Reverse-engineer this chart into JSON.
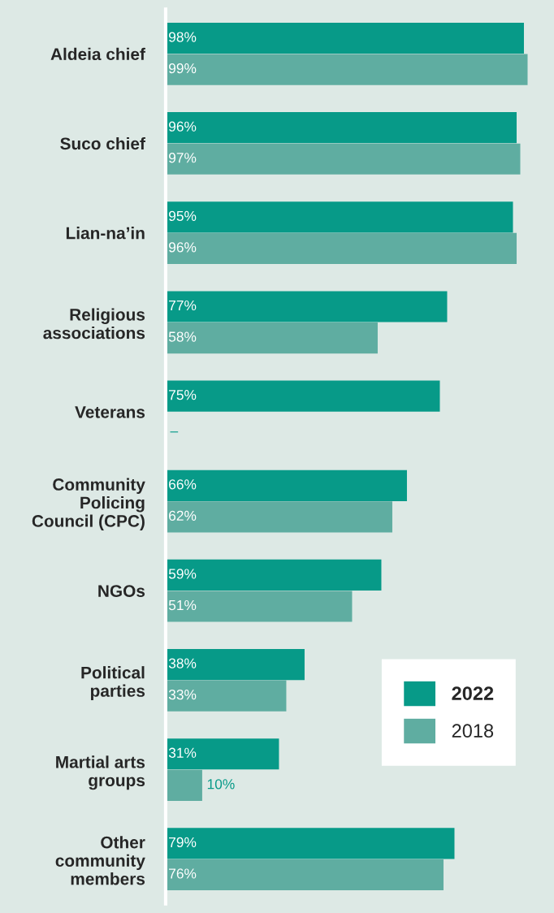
{
  "chart_data": {
    "type": "bar",
    "orientation": "horizontal",
    "categories": [
      "Aldeia chief",
      "Suco chief",
      "Lian-na’in",
      "Religious\nassociations",
      "Veterans",
      "Community\nPolicing\nCouncil (CPC)",
      "NGOs",
      "Political\nparties",
      "Martial arts\ngroups",
      "Other\ncommunity\nmembers"
    ],
    "series": [
      {
        "name": "2022",
        "color": "#079a88",
        "values": [
          98,
          96,
          95,
          77,
          75,
          66,
          59,
          38,
          31,
          79
        ],
        "value_labels": [
          "98%",
          "96%",
          "95%",
          "77%",
          "75%",
          "66%",
          "59%",
          "38%",
          "31%",
          "79%"
        ]
      },
      {
        "name": "2018",
        "color": "#5fada1",
        "values": [
          99,
          97,
          96,
          58,
          null,
          62,
          51,
          33,
          10,
          76
        ],
        "value_labels": [
          "99%",
          "97%",
          "96%",
          "58%",
          "–",
          "62%",
          "51%",
          "33%",
          "10%",
          "76%"
        ]
      }
    ],
    "tick_labels": "y",
    "grid": false,
    "legend": "bottom right"
  }
}
